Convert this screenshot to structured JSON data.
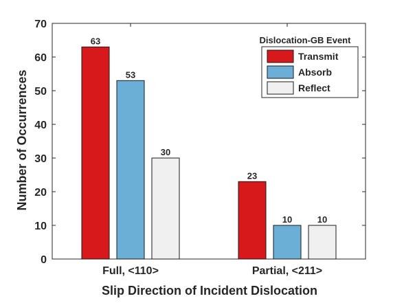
{
  "chart_data": {
    "type": "bar",
    "categories": [
      "Full, <110>",
      "Partial, <211>"
    ],
    "series": [
      {
        "name": "Transmit",
        "values": [
          63,
          23
        ],
        "color": "#d7191c"
      },
      {
        "name": "Absorb",
        "values": [
          53,
          10
        ],
        "color": "#6baed6"
      },
      {
        "name": "Reflect",
        "values": [
          30,
          10
        ],
        "color": "#f0f0f0"
      }
    ],
    "title": "",
    "xlabel": "Slip Direction of Incident Dislocation",
    "ylabel": "Number of Occurrences",
    "ylim": [
      0,
      70
    ],
    "yticks": [
      0,
      10,
      20,
      30,
      40,
      50,
      60,
      70
    ],
    "legend_title": "Dislocation-GB Event",
    "legend_position": "top-right",
    "grid": false,
    "data_labels": true
  }
}
